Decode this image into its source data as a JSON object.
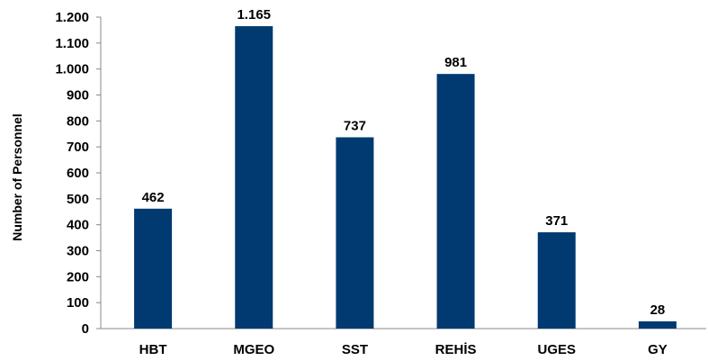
{
  "chart_data": {
    "type": "bar",
    "categories": [
      "HBT",
      "MGEO",
      "SST",
      "REHİS",
      "UGES",
      "GY"
    ],
    "values": [
      462,
      1165,
      737,
      981,
      371,
      28
    ],
    "value_labels": [
      "462",
      "1.165",
      "737",
      "981",
      "371",
      "28"
    ],
    "title": "",
    "xlabel": "",
    "ylabel": "Number of Personnel",
    "ylim": [
      0,
      1200
    ],
    "yticks": [
      0,
      100,
      200,
      300,
      400,
      500,
      600,
      700,
      800,
      900,
      1000,
      1100,
      1200
    ],
    "ytick_labels": [
      "0",
      "100",
      "200",
      "300",
      "400",
      "500",
      "600",
      "700",
      "800",
      "900",
      "1.000",
      "1.100",
      "1.200"
    ],
    "grid": false,
    "legend": "none",
    "bar_color": "#003a70",
    "axis_color": "#888888"
  }
}
